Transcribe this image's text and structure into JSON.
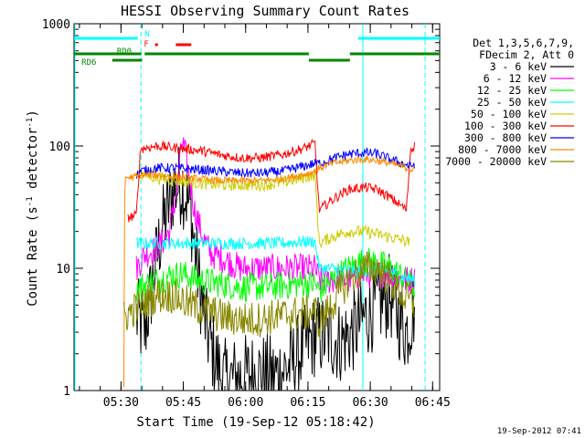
{
  "chart_data": {
    "type": "line",
    "title": "HESSI Observing Summary Count Rates",
    "xlabel": "Start Time (19-Sep-12 05:18:42)",
    "ylabel_main": "Count Rate (s",
    "ylabel_exp1": "-1",
    "ylabel_mid": " detector",
    "ylabel_exp2": "-1",
    "ylabel_end": ")",
    "footer": "19-Sep-2012 07:41",
    "x_unit": "minutes after 05:18:42",
    "xlim": [
      0,
      88
    ],
    "ylim": [
      1,
      1000
    ],
    "yscale": "log",
    "x_ticks": [
      {
        "t": 11.3,
        "label": "05:30"
      },
      {
        "t": 26.3,
        "label": "05:45"
      },
      {
        "t": 41.3,
        "label": "06:00"
      },
      {
        "t": 56.3,
        "label": "06:15"
      },
      {
        "t": 71.3,
        "label": "06:30"
      },
      {
        "t": 86.3,
        "label": "06:45"
      }
    ],
    "y_ticks": [
      {
        "v": 1,
        "label": "1"
      },
      {
        "v": 10,
        "label": "10"
      },
      {
        "v": 100,
        "label": "100"
      },
      {
        "v": 1000,
        "label": "1000"
      }
    ],
    "legend_header": [
      "Det 1,3,5,6,7,9,",
      "FDecim 2, Att 0"
    ],
    "legend_placement": "right",
    "series": [
      {
        "name": "3 - 6 keV",
        "color": "#000000",
        "points": [
          [
            15,
            4
          ],
          [
            17,
            3
          ],
          [
            19,
            8
          ],
          [
            21,
            20
          ],
          [
            24,
            45
          ],
          [
            26,
            50
          ],
          [
            28,
            30
          ],
          [
            30,
            8
          ],
          [
            32,
            3
          ],
          [
            34,
            1.8
          ],
          [
            36,
            1.2
          ],
          [
            40,
            1.3
          ],
          [
            44,
            1.4
          ],
          [
            48,
            1.3
          ],
          [
            52,
            1.6
          ],
          [
            56,
            2.4
          ],
          [
            58,
            2.8
          ],
          [
            61,
            2.8
          ],
          [
            64,
            2.5
          ],
          [
            67,
            3
          ],
          [
            70,
            4
          ],
          [
            73,
            5
          ],
          [
            76,
            6
          ],
          [
            78,
            4
          ],
          [
            80,
            3
          ],
          [
            82,
            5
          ]
        ]
      },
      {
        "name": "6 - 12 keV",
        "color": "#ff00ff",
        "points": [
          [
            15,
            10
          ],
          [
            17,
            13
          ],
          [
            19,
            14
          ],
          [
            21,
            16
          ],
          [
            23,
            20
          ],
          [
            25,
            50
          ],
          [
            26,
            110
          ],
          [
            27,
            80
          ],
          [
            29,
            30
          ],
          [
            31,
            18
          ],
          [
            33,
            13
          ],
          [
            36,
            12
          ],
          [
            40,
            10
          ],
          [
            45,
            10
          ],
          [
            50,
            10
          ],
          [
            55,
            10
          ],
          [
            58,
            10
          ],
          [
            59,
            8
          ],
          [
            62,
            8
          ],
          [
            66,
            8
          ],
          [
            70,
            9
          ],
          [
            73,
            9
          ],
          [
            76,
            9
          ],
          [
            79,
            8
          ],
          [
            82,
            8
          ]
        ]
      },
      {
        "name": "12 - 25 keV",
        "color": "#00ff00",
        "points": [
          [
            15,
            7
          ],
          [
            18,
            7.5
          ],
          [
            22,
            8.5
          ],
          [
            26,
            9
          ],
          [
            30,
            8
          ],
          [
            35,
            7.5
          ],
          [
            40,
            7
          ],
          [
            45,
            7
          ],
          [
            50,
            7.2
          ],
          [
            55,
            7.5
          ],
          [
            58,
            7.5
          ],
          [
            59,
            6.5
          ],
          [
            62,
            8
          ],
          [
            66,
            10
          ],
          [
            70,
            11.5
          ],
          [
            73,
            11
          ],
          [
            76,
            10
          ],
          [
            79,
            8.5
          ],
          [
            82,
            7
          ]
        ]
      },
      {
        "name": "25 - 50 keV",
        "color": "#00ffff",
        "points": [
          [
            15,
            16
          ],
          [
            20,
            16
          ],
          [
            25,
            16
          ],
          [
            30,
            16
          ],
          [
            35,
            16
          ],
          [
            40,
            16
          ],
          [
            45,
            16
          ],
          [
            50,
            16
          ],
          [
            55,
            16.5
          ],
          [
            58,
            16.5
          ],
          [
            59,
            10
          ],
          [
            62,
            10
          ],
          [
            66,
            9.5
          ],
          [
            70,
            9.5
          ],
          [
            73,
            9.5
          ],
          [
            76,
            9.5
          ],
          [
            79,
            8.5
          ],
          [
            82,
            8
          ]
        ]
      },
      {
        "name": "50 - 100 keV",
        "color": "#cccc00",
        "points": [
          [
            15,
            58
          ],
          [
            17,
            58
          ],
          [
            20,
            55
          ],
          [
            25,
            52
          ],
          [
            30,
            50
          ],
          [
            35,
            48
          ],
          [
            40,
            48
          ],
          [
            45,
            48
          ],
          [
            50,
            50
          ],
          [
            55,
            55
          ],
          [
            58,
            58
          ],
          [
            59,
            16
          ],
          [
            62,
            18
          ],
          [
            66,
            20
          ],
          [
            70,
            20
          ],
          [
            73,
            19
          ],
          [
            76,
            18
          ],
          [
            79,
            17
          ],
          [
            81,
            16
          ]
        ]
      },
      {
        "name": "100 - 300 keV",
        "color": "#ff0000",
        "points": [
          [
            13,
            26
          ],
          [
            15,
            27
          ],
          [
            16,
            95
          ],
          [
            20,
            100
          ],
          [
            25,
            96
          ],
          [
            30,
            92
          ],
          [
            35,
            85
          ],
          [
            40,
            80
          ],
          [
            45,
            80
          ],
          [
            50,
            85
          ],
          [
            55,
            95
          ],
          [
            58,
            105
          ],
          [
            59,
            30
          ],
          [
            62,
            36
          ],
          [
            66,
            44
          ],
          [
            70,
            46
          ],
          [
            73,
            44
          ],
          [
            76,
            38
          ],
          [
            79,
            32
          ],
          [
            80,
            30
          ],
          [
            81,
            95
          ],
          [
            82,
            100
          ]
        ]
      },
      {
        "name": "300 - 800 keV",
        "color": "#0000ff",
        "points": [
          [
            15,
            58
          ],
          [
            16,
            62
          ],
          [
            20,
            66
          ],
          [
            25,
            66
          ],
          [
            30,
            64
          ],
          [
            35,
            62
          ],
          [
            40,
            60
          ],
          [
            45,
            60
          ],
          [
            50,
            62
          ],
          [
            55,
            68
          ],
          [
            58,
            72
          ],
          [
            59,
            72
          ],
          [
            62,
            78
          ],
          [
            66,
            86
          ],
          [
            70,
            88
          ],
          [
            73,
            86
          ],
          [
            76,
            78
          ],
          [
            79,
            72
          ],
          [
            81,
            68
          ],
          [
            82,
            72
          ]
        ]
      },
      {
        "name": "800 - 7000 keV",
        "color": "#ff8800",
        "points": [
          [
            12,
            1
          ],
          [
            12.2,
            55
          ],
          [
            15,
            56
          ],
          [
            16,
            58
          ],
          [
            20,
            58
          ],
          [
            25,
            56
          ],
          [
            30,
            54
          ],
          [
            35,
            52
          ],
          [
            40,
            52
          ],
          [
            45,
            52
          ],
          [
            50,
            54
          ],
          [
            55,
            58
          ],
          [
            58,
            62
          ],
          [
            59,
            66
          ],
          [
            62,
            72
          ],
          [
            66,
            76
          ],
          [
            70,
            78
          ],
          [
            73,
            76
          ],
          [
            76,
            72
          ],
          [
            79,
            68
          ],
          [
            81,
            64
          ],
          [
            82,
            65
          ]
        ]
      },
      {
        "name": "7000 - 20000 keV",
        "color": "#888800",
        "points": [
          [
            12,
            4
          ],
          [
            14,
            4.5
          ],
          [
            16,
            5
          ],
          [
            18,
            5.5
          ],
          [
            20,
            6
          ],
          [
            24,
            6
          ],
          [
            28,
            5
          ],
          [
            32,
            4.5
          ],
          [
            36,
            4
          ],
          [
            40,
            3.8
          ],
          [
            44,
            3.8
          ],
          [
            48,
            4
          ],
          [
            52,
            4.2
          ],
          [
            56,
            4.3
          ],
          [
            58,
            4.5
          ],
          [
            59,
            3.5
          ],
          [
            62,
            5
          ],
          [
            66,
            8
          ],
          [
            70,
            10
          ],
          [
            73,
            10
          ],
          [
            76,
            8
          ],
          [
            79,
            6
          ],
          [
            82,
            5
          ]
        ]
      }
    ],
    "flags": [
      {
        "label": "",
        "color": "#00ffff",
        "ranges": [
          [
            0,
            15.3
          ],
          [
            68.4,
            88
          ]
        ]
      },
      {
        "label": "N",
        "color": "#00ffff",
        "ranges": []
      },
      {
        "label": "F",
        "color": "#ff0000",
        "ranges": [
          [
            19.5,
            20.2
          ],
          [
            24.5,
            28.2
          ]
        ]
      },
      {
        "label": "RD0",
        "color": "#008800",
        "ranges": [
          [
            0,
            16.2
          ],
          [
            17,
            56.5
          ],
          [
            66.4,
            88
          ]
        ]
      },
      {
        "label": "RD6",
        "color": "#008800",
        "ranges": [
          [
            9.2,
            16.4
          ],
          [
            56.5,
            66.4
          ]
        ]
      }
    ],
    "vlines": [
      {
        "t": 0.2,
        "style": "solid",
        "color": "#00ffff"
      },
      {
        "t": 16.1,
        "style": "dashed",
        "color": "#00ffff"
      },
      {
        "t": 69.5,
        "style": "solid",
        "color": "#00ffff"
      },
      {
        "t": 84.5,
        "style": "dashed",
        "color": "#00ffff"
      }
    ]
  }
}
